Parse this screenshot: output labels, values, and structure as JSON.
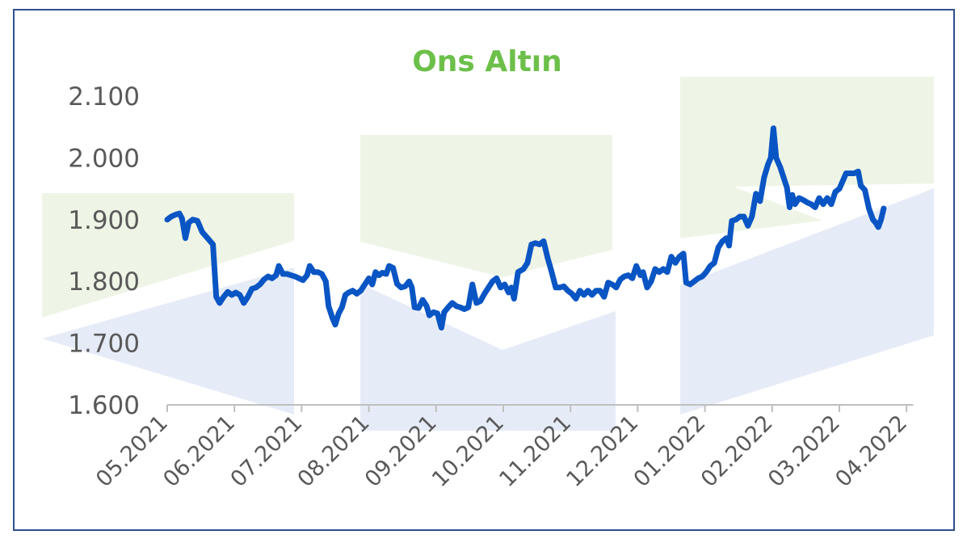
{
  "chart_data": {
    "type": "line",
    "title": "Ons Altın",
    "xlabel": "",
    "ylabel": "",
    "ylim": [
      1600,
      2100
    ],
    "yticks": [
      {
        "value": 1600,
        "label": "1.600"
      },
      {
        "value": 1700,
        "label": "1.700"
      },
      {
        "value": 1800,
        "label": "1.800"
      },
      {
        "value": 1900,
        "label": "1.900"
      },
      {
        "value": 2000,
        "label": "2.000"
      },
      {
        "value": 2100,
        "label": "2.100"
      }
    ],
    "xticks": [
      "05.2021",
      "06.2021",
      "07.2021",
      "08.2021",
      "09.2021",
      "10.2021",
      "11.2021",
      "12.2021",
      "01.2022",
      "02.2022",
      "03.2022",
      "04.2022"
    ],
    "xlim": [
      0,
      11.1
    ],
    "grid": false,
    "legend": "none",
    "series": [
      {
        "color": "#0a55c4",
        "points": [
          [
            0.0,
            1900
          ],
          [
            0.06,
            1905
          ],
          [
            0.12,
            1908
          ],
          [
            0.18,
            1910
          ],
          [
            0.22,
            1902
          ],
          [
            0.27,
            1870
          ],
          [
            0.32,
            1895
          ],
          [
            0.38,
            1900
          ],
          [
            0.45,
            1898
          ],
          [
            0.52,
            1880
          ],
          [
            0.6,
            1870
          ],
          [
            0.68,
            1860
          ],
          [
            0.73,
            1775
          ],
          [
            0.78,
            1765
          ],
          [
            0.84,
            1775
          ],
          [
            0.9,
            1783
          ],
          [
            0.96,
            1778
          ],
          [
            1.02,
            1782
          ],
          [
            1.08,
            1778
          ],
          [
            1.14,
            1765
          ],
          [
            1.2,
            1775
          ],
          [
            1.26,
            1788
          ],
          [
            1.32,
            1790
          ],
          [
            1.38,
            1795
          ],
          [
            1.44,
            1803
          ],
          [
            1.5,
            1808
          ],
          [
            1.56,
            1805
          ],
          [
            1.62,
            1810
          ],
          [
            1.66,
            1825
          ],
          [
            1.72,
            1812
          ],
          [
            1.78,
            1812
          ],
          [
            1.84,
            1810
          ],
          [
            1.9,
            1808
          ],
          [
            1.96,
            1805
          ],
          [
            2.02,
            1802
          ],
          [
            2.08,
            1810
          ],
          [
            2.12,
            1825
          ],
          [
            2.18,
            1815
          ],
          [
            2.24,
            1815
          ],
          [
            2.3,
            1812
          ],
          [
            2.36,
            1800
          ],
          [
            2.4,
            1760
          ],
          [
            2.46,
            1740
          ],
          [
            2.5,
            1730
          ],
          [
            2.55,
            1748
          ],
          [
            2.6,
            1758
          ],
          [
            2.65,
            1778
          ],
          [
            2.7,
            1782
          ],
          [
            2.76,
            1785
          ],
          [
            2.82,
            1780
          ],
          [
            2.88,
            1785
          ],
          [
            2.94,
            1795
          ],
          [
            3.0,
            1805
          ],
          [
            3.05,
            1795
          ],
          [
            3.1,
            1815
          ],
          [
            3.15,
            1810
          ],
          [
            3.2,
            1814
          ],
          [
            3.26,
            1812
          ],
          [
            3.3,
            1825
          ],
          [
            3.36,
            1822
          ],
          [
            3.42,
            1796
          ],
          [
            3.48,
            1790
          ],
          [
            3.54,
            1792
          ],
          [
            3.6,
            1800
          ],
          [
            3.64,
            1790
          ],
          [
            3.68,
            1758
          ],
          [
            3.74,
            1757
          ],
          [
            3.8,
            1770
          ],
          [
            3.86,
            1760
          ],
          [
            3.9,
            1745
          ],
          [
            3.96,
            1750
          ],
          [
            4.02,
            1748
          ],
          [
            4.08,
            1725
          ],
          [
            4.12,
            1750
          ],
          [
            4.18,
            1758
          ],
          [
            4.24,
            1765
          ],
          [
            4.3,
            1760
          ],
          [
            4.36,
            1758
          ],
          [
            4.42,
            1755
          ],
          [
            4.48,
            1758
          ],
          [
            4.54,
            1795
          ],
          [
            4.6,
            1765
          ],
          [
            4.66,
            1768
          ],
          [
            4.72,
            1780
          ],
          [
            4.78,
            1790
          ],
          [
            4.84,
            1800
          ],
          [
            4.9,
            1805
          ],
          [
            4.96,
            1790
          ],
          [
            5.02,
            1795
          ],
          [
            5.08,
            1782
          ],
          [
            5.12,
            1790
          ],
          [
            5.16,
            1772
          ],
          [
            5.22,
            1815
          ],
          [
            5.3,
            1820
          ],
          [
            5.36,
            1830
          ],
          [
            5.42,
            1860
          ],
          [
            5.48,
            1862
          ],
          [
            5.54,
            1860
          ],
          [
            5.6,
            1865
          ],
          [
            5.66,
            1838
          ],
          [
            5.72,
            1815
          ],
          [
            5.78,
            1790
          ],
          [
            5.84,
            1790
          ],
          [
            5.9,
            1792
          ],
          [
            5.96,
            1785
          ],
          [
            6.02,
            1780
          ],
          [
            6.08,
            1772
          ],
          [
            6.14,
            1785
          ],
          [
            6.2,
            1778
          ],
          [
            6.26,
            1785
          ],
          [
            6.32,
            1778
          ],
          [
            6.38,
            1785
          ],
          [
            6.44,
            1785
          ],
          [
            6.5,
            1775
          ],
          [
            6.56,
            1798
          ],
          [
            6.62,
            1795
          ],
          [
            6.68,
            1790
          ],
          [
            6.74,
            1803
          ],
          [
            6.8,
            1808
          ],
          [
            6.86,
            1810
          ],
          [
            6.92,
            1805
          ],
          [
            6.98,
            1825
          ],
          [
            7.04,
            1810
          ],
          [
            7.08,
            1815
          ],
          [
            7.14,
            1790
          ],
          [
            7.2,
            1800
          ],
          [
            7.26,
            1820
          ],
          [
            7.32,
            1815
          ],
          [
            7.38,
            1820
          ],
          [
            7.44,
            1815
          ],
          [
            7.5,
            1840
          ],
          [
            7.56,
            1830
          ],
          [
            7.62,
            1840
          ],
          [
            7.68,
            1845
          ],
          [
            7.72,
            1798
          ],
          [
            7.78,
            1795
          ],
          [
            7.84,
            1800
          ],
          [
            7.9,
            1805
          ],
          [
            7.96,
            1808
          ],
          [
            8.02,
            1815
          ],
          [
            8.08,
            1825
          ],
          [
            8.14,
            1830
          ],
          [
            8.2,
            1855
          ],
          [
            8.26,
            1865
          ],
          [
            8.32,
            1870
          ],
          [
            8.36,
            1858
          ],
          [
            8.4,
            1898
          ],
          [
            8.46,
            1900
          ],
          [
            8.52,
            1905
          ],
          [
            8.58,
            1905
          ],
          [
            8.64,
            1890
          ],
          [
            8.7,
            1905
          ],
          [
            8.76,
            1942
          ],
          [
            8.82,
            1930
          ],
          [
            8.88,
            1968
          ],
          [
            8.94,
            1990
          ],
          [
            8.98,
            2000
          ],
          [
            9.02,
            2048
          ],
          [
            9.06,
            2000
          ],
          [
            9.12,
            1985
          ],
          [
            9.18,
            1965
          ],
          [
            9.22,
            1952
          ],
          [
            9.26,
            1920
          ],
          [
            9.3,
            1940
          ],
          [
            9.34,
            1925
          ],
          [
            9.4,
            1935
          ],
          [
            9.46,
            1932
          ],
          [
            9.52,
            1928
          ],
          [
            9.58,
            1925
          ],
          [
            9.64,
            1920
          ],
          [
            9.7,
            1935
          ],
          [
            9.76,
            1925
          ],
          [
            9.82,
            1935
          ],
          [
            9.88,
            1925
          ],
          [
            9.94,
            1945
          ],
          [
            10.0,
            1950
          ],
          [
            10.06,
            1965
          ],
          [
            10.1,
            1975
          ],
          [
            10.16,
            1975
          ],
          [
            10.22,
            1975
          ],
          [
            10.28,
            1978
          ],
          [
            10.32,
            1955
          ],
          [
            10.38,
            1948
          ],
          [
            10.44,
            1918
          ],
          [
            10.5,
            1900
          ],
          [
            10.54,
            1895
          ],
          [
            10.58,
            1888
          ],
          [
            10.62,
            1900
          ],
          [
            10.66,
            1918
          ]
        ]
      }
    ],
    "watermark_colors": {
      "green": "#eef5e6",
      "blue": "#e6ecf7"
    }
  }
}
